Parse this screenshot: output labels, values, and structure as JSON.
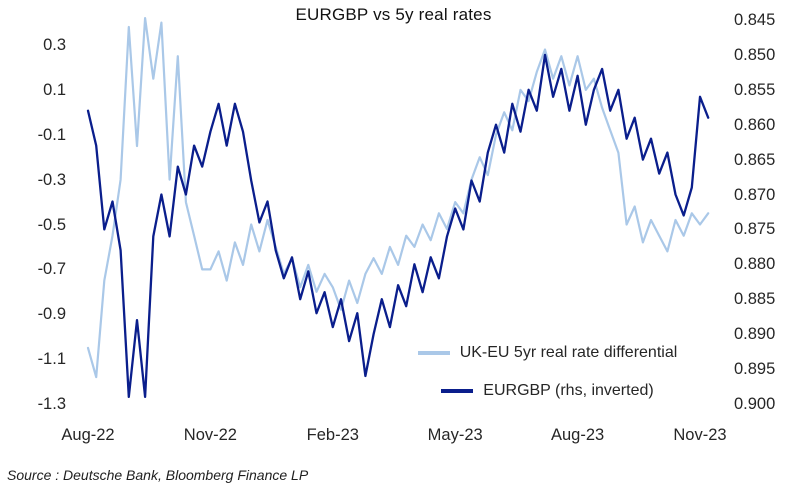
{
  "title": "EURGBP vs 5y real rates",
  "source": "Source : Deutsche Bank, Bloomberg Finance LP",
  "colors": {
    "light_blue": "#aac8e8",
    "navy": "#0a1e8c",
    "text": "#262626"
  },
  "legend": {
    "items": [
      {
        "label": "UK-EU 5yr real rate differential",
        "color": "#aac8e8"
      },
      {
        "label": "EURGBP (rhs, inverted)",
        "color": "#0a1e8c"
      }
    ]
  },
  "chart_data": {
    "type": "line",
    "title": "EURGBP vs 5y real rates",
    "grid": false,
    "legend_position": "inside-bottom-right",
    "x_unit": "months since Aug-2022 (daily/weekly series)",
    "x_start": 0,
    "x_step": 0.2,
    "x_axis": {
      "tick_labels": [
        "Aug-22",
        "Nov-22",
        "Feb-23",
        "May-23",
        "Aug-23",
        "Nov-23"
      ],
      "tick_months": [
        0,
        3,
        6,
        9,
        12,
        15
      ]
    },
    "left_axis": {
      "series": "UK-EU 5yr real rate differential",
      "tick_start": 0.3,
      "tick_step": -0.2,
      "tick_labels": [
        "0.3",
        "0.1",
        "-0.1",
        "-0.3",
        "-0.5",
        "-0.7",
        "-0.9",
        "-1.1",
        "-1.3"
      ],
      "range": [
        -1.3,
        0.45
      ]
    },
    "right_axis": {
      "series": "EURGBP",
      "inverted": true,
      "tick_start": 0.845,
      "tick_step": 0.005,
      "tick_labels": [
        "0.845",
        "0.850",
        "0.855",
        "0.860",
        "0.865",
        "0.870",
        "0.875",
        "0.880",
        "0.885",
        "0.890",
        "0.895",
        "0.900"
      ],
      "range": [
        0.845,
        0.9
      ]
    },
    "series": [
      {
        "name": "UK-EU 5yr real rate differential",
        "axis": "left",
        "color": "#aac8e8",
        "values": [
          -1.05,
          -1.18,
          -0.75,
          -0.55,
          -0.3,
          0.38,
          -0.15,
          0.42,
          0.15,
          0.4,
          -0.3,
          0.25,
          -0.4,
          -0.55,
          -0.7,
          -0.7,
          -0.62,
          -0.75,
          -0.58,
          -0.68,
          -0.5,
          -0.62,
          -0.48,
          -0.6,
          -0.72,
          -0.65,
          -0.78,
          -0.68,
          -0.8,
          -0.72,
          -0.78,
          -0.88,
          -0.75,
          -0.85,
          -0.72,
          -0.65,
          -0.72,
          -0.6,
          -0.68,
          -0.55,
          -0.6,
          -0.5,
          -0.57,
          -0.45,
          -0.52,
          -0.4,
          -0.45,
          -0.3,
          -0.2,
          -0.28,
          -0.1,
          0.0,
          -0.08,
          0.1,
          0.05,
          0.18,
          0.28,
          0.15,
          0.25,
          0.12,
          0.25,
          0.1,
          0.15,
          0.02,
          -0.08,
          -0.18,
          -0.5,
          -0.42,
          -0.58,
          -0.48,
          -0.55,
          -0.62,
          -0.48,
          -0.55,
          -0.45,
          -0.5,
          -0.45
        ]
      },
      {
        "name": "EURGBP (rhs, inverted)",
        "axis": "right",
        "color": "#0a1e8c",
        "values": [
          0.858,
          0.863,
          0.875,
          0.871,
          0.878,
          0.899,
          0.888,
          0.899,
          0.876,
          0.87,
          0.876,
          0.866,
          0.87,
          0.863,
          0.866,
          0.861,
          0.857,
          0.863,
          0.857,
          0.861,
          0.868,
          0.874,
          0.871,
          0.878,
          0.882,
          0.879,
          0.885,
          0.881,
          0.887,
          0.884,
          0.889,
          0.885,
          0.891,
          0.887,
          0.896,
          0.89,
          0.885,
          0.889,
          0.883,
          0.886,
          0.88,
          0.884,
          0.879,
          0.882,
          0.876,
          0.872,
          0.875,
          0.868,
          0.871,
          0.864,
          0.86,
          0.864,
          0.857,
          0.861,
          0.855,
          0.858,
          0.85,
          0.856,
          0.852,
          0.858,
          0.853,
          0.86,
          0.855,
          0.852,
          0.858,
          0.855,
          0.862,
          0.859,
          0.865,
          0.862,
          0.867,
          0.864,
          0.87,
          0.873,
          0.869,
          0.856,
          0.859
        ]
      }
    ]
  }
}
